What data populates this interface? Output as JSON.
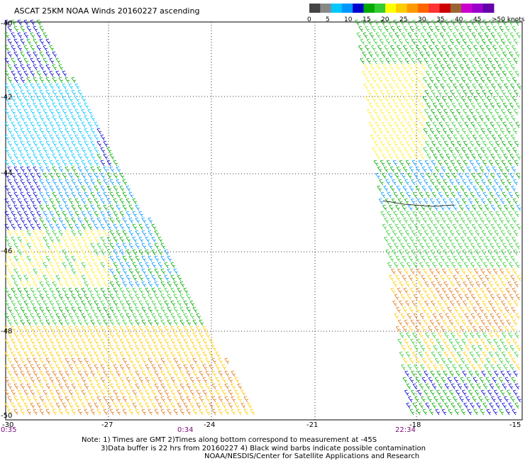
{
  "title": "ASCAT 25KM NOAA Winds 20160227 ascending",
  "legend": {
    "labels": [
      "0",
      "5",
      "10",
      "15",
      "20",
      "25",
      "30",
      "35",
      "40",
      "45",
      ">50 knots"
    ],
    "colors": [
      "#444444",
      "#888888",
      "#00c8ff",
      "#0096ff",
      "#0000cc",
      "#00aa00",
      "#33cc33",
      "#ffff00",
      "#ffcc00",
      "#ff9900",
      "#ff6600",
      "#ff3333",
      "#cc0000",
      "#996633",
      "#cc00cc",
      "#9900cc",
      "#6600aa"
    ]
  },
  "axes": {
    "x_ticks": [
      "-30",
      "-27",
      "-24",
      "-21",
      "-18",
      "-15"
    ],
    "y_ticks": [
      "-40",
      "-42",
      "-44",
      "-46",
      "-48",
      "-50"
    ]
  },
  "times": [
    "0:35",
    "0:34",
    "22:34"
  ],
  "notes": [
    "Note: 1) Times are GMT 2)Times along bottom correspond to measurement at -45S",
    "3)Data buffer is 22 hrs from 20160227 4) Black wind barbs indicate possible contamination",
    "NOAA/NESDIS/Center for Satellite Applications and Research"
  ]
}
